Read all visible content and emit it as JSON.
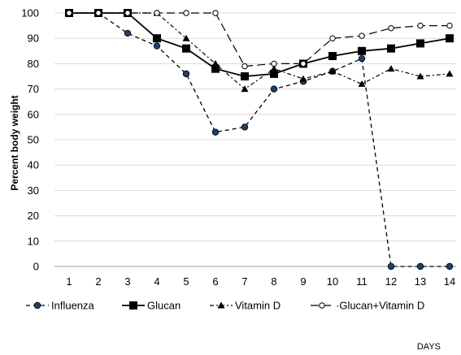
{
  "chart_data": {
    "type": "line",
    "xlabel": "DAYS",
    "ylabel": "Percent body weight",
    "ylim": [
      0,
      100
    ],
    "yticks": [
      0,
      10,
      20,
      30,
      40,
      50,
      60,
      70,
      80,
      90,
      100
    ],
    "x": [
      1,
      2,
      3,
      4,
      5,
      6,
      7,
      8,
      9,
      10,
      11,
      12,
      13,
      14
    ],
    "grid": "horizontal",
    "legend_position": "bottom",
    "series": [
      {
        "name": "Influenza",
        "values": [
          100,
          100,
          92,
          87,
          76,
          53,
          55,
          70,
          73,
          77,
          82,
          0,
          0,
          0
        ],
        "line_style": "dashed",
        "marker": "circle",
        "marker_fill": "#1f3f6a",
        "color": "#000000"
      },
      {
        "name": "Glucan",
        "values": [
          100,
          100,
          100,
          90,
          86,
          78,
          75,
          76,
          80,
          83,
          85,
          86,
          88,
          90
        ],
        "line_style": "solid",
        "marker": "square",
        "marker_fill": "#000000",
        "color": "#000000"
      },
      {
        "name": "Vitamin D",
        "values": [
          100,
          100,
          100,
          100,
          90,
          80,
          70,
          78,
          74,
          77,
          72,
          78,
          75,
          76
        ],
        "line_style": "dash-dot",
        "marker": "triangle",
        "marker_fill": "#000000",
        "color": "#000000"
      },
      {
        "name": "·Glucan+Vitamin D",
        "values": [
          100,
          100,
          100,
          100,
          100,
          100,
          79,
          80,
          80,
          90,
          91,
          94,
          95,
          95
        ],
        "line_style": "long-dash",
        "marker": "circle-open",
        "marker_fill": "#ffffff",
        "color": "#000000"
      }
    ]
  }
}
